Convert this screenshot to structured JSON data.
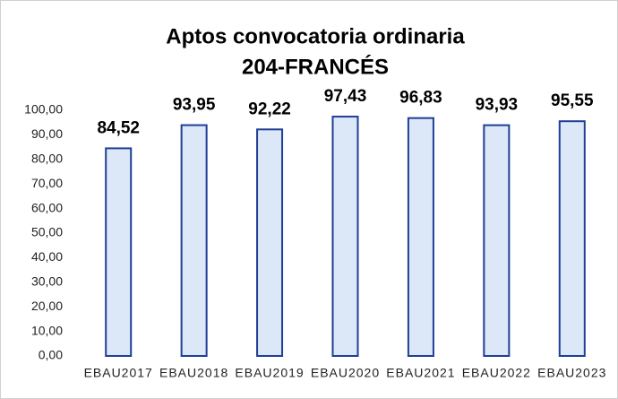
{
  "chart_data": {
    "type": "bar",
    "title": "Aptos convocatoria ordinaria",
    "subtitle": "204-FRANCÉS",
    "categories": [
      "EBAU2017",
      "EBAU2018",
      "EBAU2019",
      "EBAU2020",
      "EBAU2021",
      "EBAU2022",
      "EBAU2023"
    ],
    "values": [
      84.52,
      93.95,
      92.22,
      97.43,
      96.83,
      93.93,
      95.55
    ],
    "value_labels": [
      "84,52",
      "93,95",
      "92,22",
      "97,43",
      "96,83",
      "93,93",
      "95,55"
    ],
    "color": "#dce8f7",
    "edge_color": "#1f3e96",
    "ylim": [
      0,
      100
    ],
    "yticks": [
      {
        "value": 0,
        "label": "0,00"
      },
      {
        "value": 10,
        "label": "10,00"
      },
      {
        "value": 20,
        "label": "20,00"
      },
      {
        "value": 30,
        "label": "30,00"
      },
      {
        "value": 40,
        "label": "40,00"
      },
      {
        "value": 50,
        "label": "50,00"
      },
      {
        "value": 60,
        "label": "60,00"
      },
      {
        "value": 70,
        "label": "70,00"
      },
      {
        "value": 80,
        "label": "80,00"
      },
      {
        "value": 90,
        "label": "90,00"
      },
      {
        "value": 100,
        "label": "100,00"
      }
    ],
    "grid": false
  }
}
